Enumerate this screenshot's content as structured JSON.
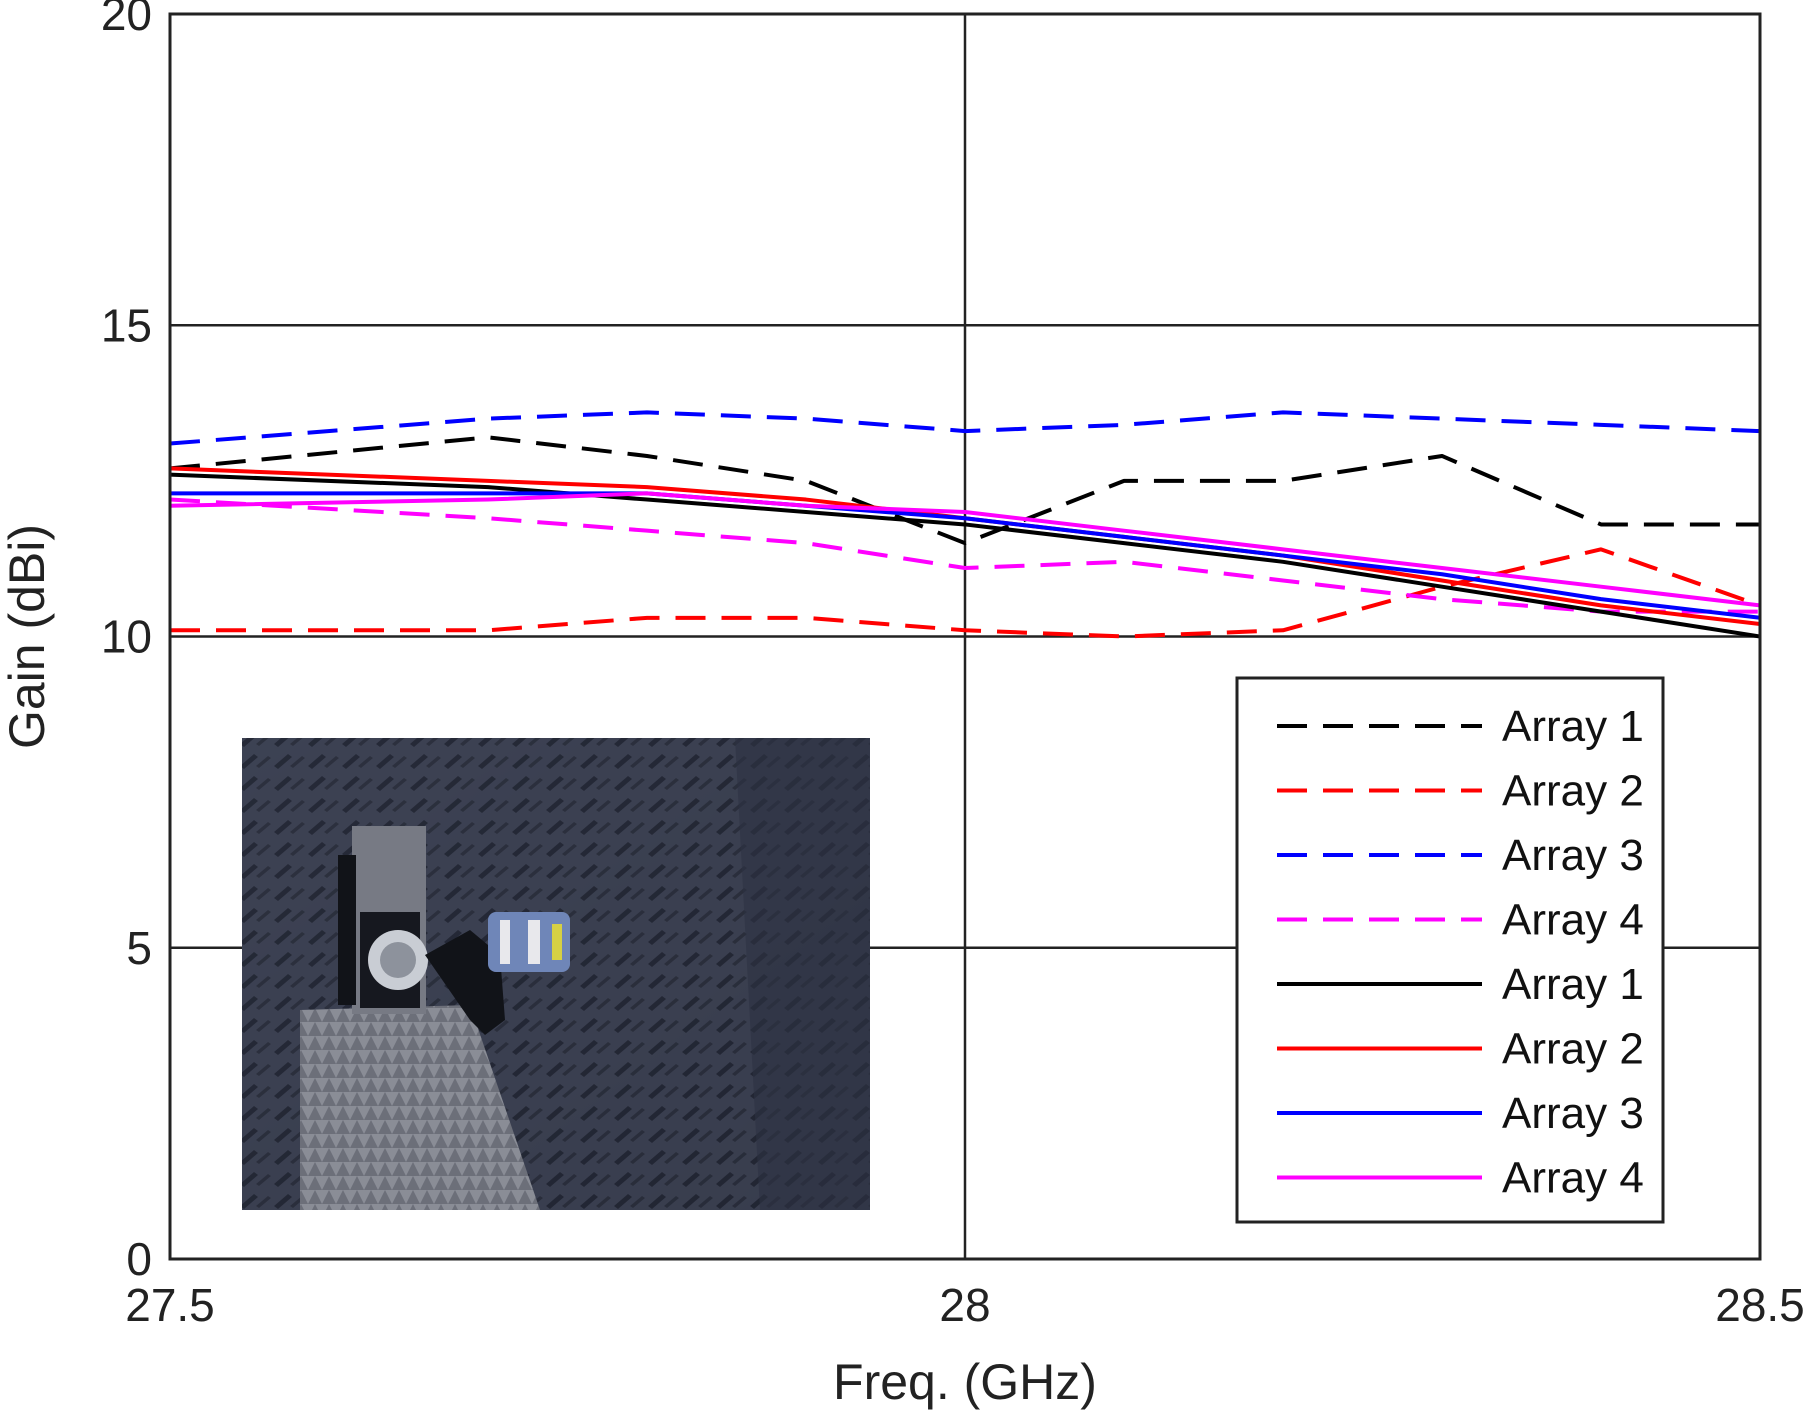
{
  "chart_data": {
    "type": "line",
    "title": "",
    "xlabel": "Freq. (GHz)",
    "ylabel": "Gain (dBi)",
    "xlim": [
      27.5,
      28.5
    ],
    "ylim": [
      0,
      20
    ],
    "xticks": [
      "27.5",
      "28",
      "28.5"
    ],
    "yticks": [
      "0",
      "5",
      "10",
      "15",
      "20"
    ],
    "grid": true,
    "legend_position": "bottom-right",
    "inset": "photo of antenna array in anechoic chamber",
    "series": [
      {
        "name": "Array 1",
        "style": "dashed",
        "color": "#000000",
        "x": [
          27.5,
          27.7,
          27.8,
          27.9,
          28.0,
          28.1,
          28.2,
          28.3,
          28.4,
          28.5
        ],
        "y": [
          12.7,
          13.2,
          12.9,
          12.5,
          11.5,
          12.5,
          12.5,
          12.9,
          11.8,
          11.8
        ]
      },
      {
        "name": "Array 2",
        "style": "dashed",
        "color": "#ff0000",
        "x": [
          27.5,
          27.7,
          27.8,
          27.9,
          28.0,
          28.1,
          28.2,
          28.3,
          28.4,
          28.5
        ],
        "y": [
          10.1,
          10.1,
          10.3,
          10.3,
          10.1,
          10.0,
          10.1,
          10.8,
          11.4,
          10.5
        ]
      },
      {
        "name": "Array 3",
        "style": "dashed",
        "color": "#0000ff",
        "x": [
          27.5,
          27.7,
          27.8,
          27.9,
          28.0,
          28.1,
          28.2,
          28.3,
          28.4,
          28.5
        ],
        "y": [
          13.1,
          13.5,
          13.6,
          13.5,
          13.3,
          13.4,
          13.6,
          13.5,
          13.4,
          13.3
        ]
      },
      {
        "name": "Array 4",
        "style": "dashed",
        "color": "#ff00ff",
        "x": [
          27.5,
          27.7,
          27.8,
          27.9,
          28.0,
          28.1,
          28.2,
          28.3,
          28.4,
          28.5
        ],
        "y": [
          12.2,
          11.9,
          11.7,
          11.5,
          11.1,
          11.2,
          10.9,
          10.6,
          10.4,
          10.4
        ]
      },
      {
        "name": "Array 1",
        "style": "solid",
        "color": "#000000",
        "x": [
          27.5,
          27.7,
          27.8,
          27.9,
          28.0,
          28.1,
          28.2,
          28.3,
          28.4,
          28.5
        ],
        "y": [
          12.6,
          12.4,
          12.2,
          12.0,
          11.8,
          11.5,
          11.2,
          10.8,
          10.4,
          10.0
        ]
      },
      {
        "name": "Array 2",
        "style": "solid",
        "color": "#ff0000",
        "x": [
          27.5,
          27.7,
          27.8,
          27.9,
          28.0,
          28.1,
          28.2,
          28.3,
          28.4,
          28.5
        ],
        "y": [
          12.7,
          12.5,
          12.4,
          12.2,
          11.9,
          11.6,
          11.3,
          10.9,
          10.5,
          10.2
        ]
      },
      {
        "name": "Array 3",
        "style": "solid",
        "color": "#0000ff",
        "x": [
          27.5,
          27.7,
          27.8,
          27.9,
          28.0,
          28.1,
          28.2,
          28.3,
          28.4,
          28.5
        ],
        "y": [
          12.3,
          12.3,
          12.3,
          12.1,
          11.9,
          11.6,
          11.3,
          11.0,
          10.6,
          10.3
        ]
      },
      {
        "name": "Array 4",
        "style": "solid",
        "color": "#ff00ff",
        "x": [
          27.5,
          27.7,
          27.8,
          27.9,
          28.0,
          28.1,
          28.2,
          28.3,
          28.4,
          28.5
        ],
        "y": [
          12.1,
          12.2,
          12.3,
          12.1,
          12.0,
          11.7,
          11.4,
          11.1,
          10.8,
          10.5
        ]
      }
    ]
  }
}
